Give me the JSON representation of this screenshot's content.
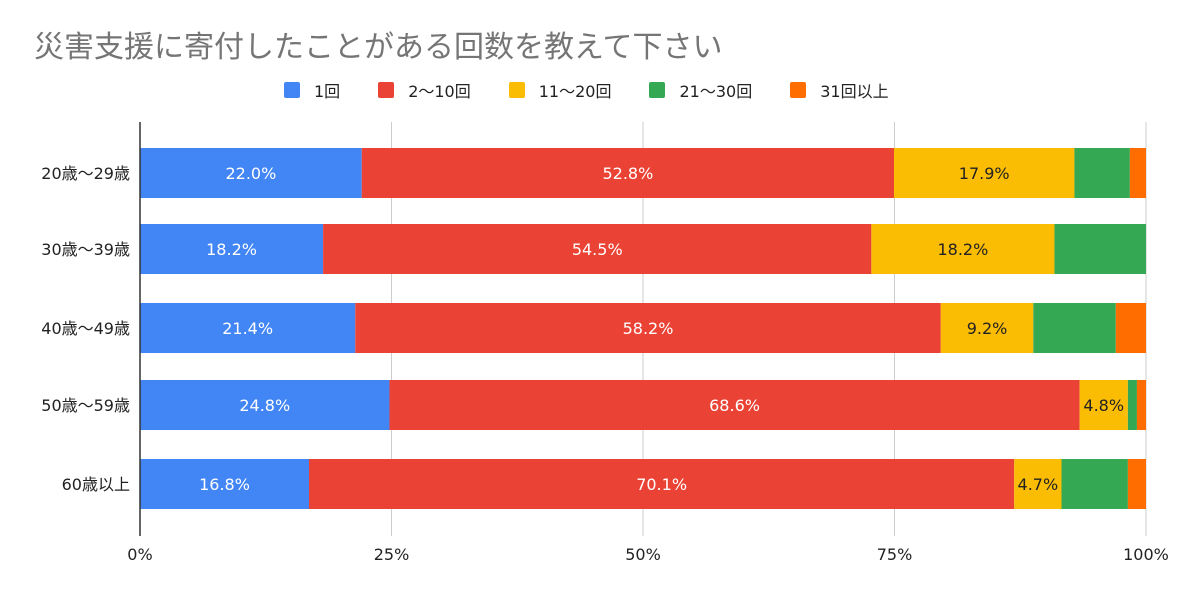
{
  "chart_data": {
    "type": "bar",
    "orientation": "horizontal",
    "stacked": "percent",
    "title": "災害支援に寄付したことがある回数を教えて下さい",
    "categories": [
      "20歳〜29歳",
      "30歳〜39歳",
      "40歳〜49歳",
      "50歳〜59歳",
      "60歳以上"
    ],
    "series": [
      {
        "name": "1回",
        "color": "#4285f4",
        "values": [
          22.0,
          18.2,
          21.4,
          24.8,
          16.8
        ],
        "labels": [
          "22.0%",
          "18.2%",
          "21.4%",
          "24.8%",
          "16.8%"
        ]
      },
      {
        "name": "2〜10回",
        "color": "#ea4335",
        "values": [
          52.8,
          54.5,
          58.2,
          68.6,
          70.1
        ],
        "labels": [
          "52.8%",
          "54.5%",
          "58.2%",
          "68.6%",
          "70.1%"
        ]
      },
      {
        "name": "11〜20回",
        "color": "#fbbc04",
        "values": [
          17.9,
          18.2,
          9.2,
          4.8,
          4.7
        ],
        "labels": [
          "17.9%",
          "18.2%",
          "9.2%",
          "4.8%",
          "4.7%"
        ]
      },
      {
        "name": "21〜30回",
        "color": "#34a853",
        "values": [
          5.5,
          9.1,
          8.2,
          0.9,
          6.6
        ],
        "labels": [
          "",
          "",
          "",
          "",
          ""
        ]
      },
      {
        "name": "31回以上",
        "color": "#ff6d01",
        "values": [
          1.6,
          0.0,
          3.0,
          0.9,
          1.8
        ],
        "labels": [
          "",
          "",
          "",
          "",
          ""
        ]
      }
    ],
    "xlim": [
      0,
      100
    ],
    "x_ticks": [
      "0%",
      "25%",
      "50%",
      "75%",
      "100%"
    ],
    "xlabel": "",
    "ylabel": "",
    "grid": true,
    "legend_position": "top"
  }
}
